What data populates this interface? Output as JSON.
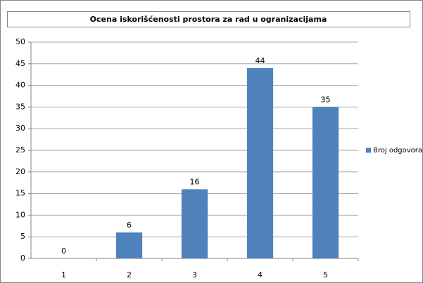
{
  "chart_data": {
    "type": "bar",
    "title": "Ocena iskorišćenosti prostora za rad u ogranizacijama",
    "categories": [
      "1",
      "2",
      "3",
      "4",
      "5"
    ],
    "series": [
      {
        "name": "Broj odgovora",
        "color": "#4f81bd",
        "values": [
          0,
          6,
          16,
          44,
          35
        ]
      }
    ],
    "ylim": [
      0,
      50
    ],
    "yticks": [
      0,
      5,
      10,
      15,
      20,
      25,
      30,
      35,
      40,
      45,
      50
    ],
    "grid": true,
    "legend": "right"
  }
}
